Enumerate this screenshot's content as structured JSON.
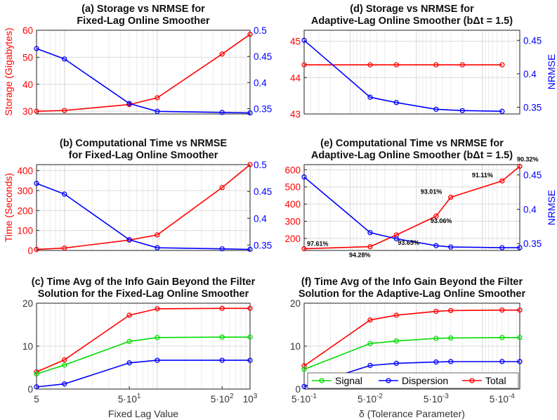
{
  "chart_data": [
    {
      "id": "a",
      "type": "line",
      "title": [
        "(a) Storage vs NRMSE for",
        "Fixed-Lag Online Smoother"
      ],
      "xscale": "log",
      "xlim": [
        5,
        1000
      ],
      "ylabel_left": "Storage (Gigabytes)",
      "ylim_left": [
        29,
        60
      ],
      "yticks_left": [
        30,
        40,
        50,
        60
      ],
      "ylabel_right": "",
      "ylim_right": [
        0.34,
        0.5
      ],
      "yticks_right": [
        0.35,
        0.4,
        0.45,
        0.5
      ],
      "series": [
        {
          "name": "Storage",
          "axis": "left",
          "color": "#ff0000",
          "x": [
            5,
            10,
            50,
            100,
            500,
            1000
          ],
          "values": [
            30,
            30.3,
            32.5,
            35,
            51.2,
            58.5
          ]
        },
        {
          "name": "NRMSE",
          "axis": "right",
          "color": "#0000ff",
          "x": [
            5,
            10,
            50,
            100,
            500,
            1000
          ],
          "values": [
            0.465,
            0.445,
            0.36,
            0.345,
            0.343,
            0.342
          ]
        }
      ]
    },
    {
      "id": "b",
      "type": "line",
      "title": [
        "(b) Computational Time vs NRMSE",
        "for Fixed-Lag Online Smoother"
      ],
      "xscale": "log",
      "xlim": [
        5,
        1000
      ],
      "ylabel_left": "Time (Seconds)",
      "ylim_left": [
        0,
        430
      ],
      "yticks_left": [
        0,
        100,
        200,
        300,
        400
      ],
      "ylabel_right": "",
      "ylim_right": [
        0.34,
        0.5
      ],
      "yticks_right": [
        0.35,
        0.4,
        0.45,
        0.5
      ],
      "series": [
        {
          "name": "Time",
          "axis": "left",
          "color": "#ff0000",
          "x": [
            5,
            10,
            50,
            100,
            500,
            1000
          ],
          "values": [
            5,
            12,
            52,
            78,
            315,
            430
          ]
        },
        {
          "name": "NRMSE",
          "axis": "right",
          "color": "#0000ff",
          "x": [
            5,
            10,
            50,
            100,
            500,
            1000
          ],
          "values": [
            0.465,
            0.445,
            0.36,
            0.345,
            0.343,
            0.342
          ]
        }
      ]
    },
    {
      "id": "c",
      "type": "line",
      "title": [
        "(c) Time Avg of the Info Gain Beyond the Filter",
        "Solution for the Fixed-Lag Online Smoother"
      ],
      "xscale": "log",
      "xlim": [
        5,
        1000
      ],
      "xticks": [
        5,
        50,
        500,
        1000
      ],
      "xticklabels": [
        "5",
        "5·10^1",
        "5·10^2",
        "10^3"
      ],
      "xlabel": "Fixed Lag Value",
      "ylim_left": [
        0,
        20
      ],
      "yticks_left": [
        0,
        10,
        20
      ],
      "series": [
        {
          "name": "Total",
          "color": "#ff0000",
          "x": [
            5,
            10,
            50,
            100,
            500,
            1000
          ],
          "values": [
            4,
            6.8,
            17.2,
            18.7,
            18.8,
            18.8
          ]
        },
        {
          "name": "Signal",
          "color": "#00dd00",
          "x": [
            5,
            10,
            50,
            100,
            500,
            1000
          ],
          "values": [
            3.5,
            5.6,
            11.1,
            12,
            12.1,
            12.1
          ]
        },
        {
          "name": "Dispersion",
          "color": "#0000ff",
          "x": [
            5,
            10,
            50,
            100,
            500,
            1000
          ],
          "values": [
            0.5,
            1.2,
            6.1,
            6.7,
            6.7,
            6.7
          ]
        }
      ]
    },
    {
      "id": "d",
      "type": "line",
      "title": [
        "(d) Storage vs NRMSE for",
        "Adaptive-Lag Online Smoother (bΔt = 1.5)"
      ],
      "xscale": "log-reversed",
      "xlim": [
        0.5,
        0.00027
      ],
      "ylabel_left": "",
      "ylim_left": [
        43,
        45.3
      ],
      "yticks_left": [
        43,
        44,
        45
      ],
      "ylabel_right": "NRMSE",
      "ylim_right": [
        0.34,
        0.465
      ],
      "yticks_right": [
        0.35,
        0.4,
        0.45
      ],
      "series": [
        {
          "name": "Storage",
          "axis": "left",
          "color": "#ff0000",
          "x": [
            0.5,
            0.05,
            0.02,
            0.005,
            0.002,
            0.0005
          ],
          "values": [
            44.35,
            44.35,
            44.35,
            44.35,
            44.35,
            44.35
          ]
        },
        {
          "name": "NRMSE",
          "axis": "right",
          "color": "#0000ff",
          "x": [
            0.5,
            0.05,
            0.02,
            0.005,
            0.002,
            0.0005
          ],
          "values": [
            0.45,
            0.365,
            0.357,
            0.347,
            0.345,
            0.344
          ]
        }
      ]
    },
    {
      "id": "e",
      "type": "line",
      "title": [
        "(e) Computational Time vs NRMSE for",
        "Adaptive-Lag Online Smoother (bΔt = 1.5)"
      ],
      "xscale": "log-reversed",
      "xlim": [
        0.5,
        0.00027
      ],
      "ylabel_left": "",
      "ylim_left": [
        130,
        630
      ],
      "yticks_left": [
        200,
        300,
        400,
        500,
        600
      ],
      "ylabel_right": "NRMSE",
      "ylim_right": [
        0.34,
        0.465
      ],
      "yticks_right": [
        0.35,
        0.4,
        0.45
      ],
      "series": [
        {
          "name": "Time",
          "axis": "left",
          "color": "#ff0000",
          "x": [
            0.5,
            0.05,
            0.02,
            0.005,
            0.003,
            0.0005,
            0.00027
          ],
          "values": [
            140,
            152,
            220,
            330,
            440,
            535,
            620
          ]
        },
        {
          "name": "NRMSE",
          "axis": "right",
          "color": "#0000ff",
          "x": [
            0.5,
            0.05,
            0.02,
            0.005,
            0.003,
            0.0005,
            0.00027
          ],
          "values": [
            0.447,
            0.366,
            0.357,
            0.347,
            0.345,
            0.344,
            0.344
          ]
        }
      ],
      "annotations": [
        "97.61%",
        "94.28%",
        "93.65%",
        "93.06%",
        "93.01%",
        "91.11%",
        "90.32%"
      ]
    },
    {
      "id": "f",
      "type": "line",
      "title": [
        "(f) Time Avg of the Info Gain Beyond the Filter",
        "Solution for the Adaptive-Lag Online Smoother"
      ],
      "xscale": "log-reversed",
      "xlim": [
        0.5,
        0.00027
      ],
      "xticks": [
        0.5,
        0.05,
        0.005,
        0.0005
      ],
      "xticklabels": [
        "5·10^-1",
        "5·10^-2",
        "5·10^-3",
        "5·10^-4"
      ],
      "xlabel": "δ (Tolerance Parameter)",
      "ylim_left": [
        0,
        20
      ],
      "yticks_left": [
        0,
        10,
        20
      ],
      "legend": {
        "placement": "bottom-right",
        "entries": [
          "Signal",
          "Dispersion",
          "Total"
        ]
      },
      "series": [
        {
          "name": "Total",
          "color": "#ff0000",
          "x": [
            0.5,
            0.05,
            0.02,
            0.005,
            0.003,
            0.0005,
            0.00027
          ],
          "values": [
            5.4,
            16.1,
            17.2,
            18.1,
            18.3,
            18.4,
            18.4
          ]
        },
        {
          "name": "Signal",
          "color": "#00dd00",
          "x": [
            0.5,
            0.05,
            0.02,
            0.005,
            0.003,
            0.0005,
            0.00027
          ],
          "values": [
            4.6,
            10.6,
            11.2,
            11.8,
            11.9,
            12,
            12
          ]
        },
        {
          "name": "Dispersion",
          "color": "#0000ff",
          "x": [
            0.5,
            0.05,
            0.02,
            0.005,
            0.003,
            0.0005,
            0.00027
          ],
          "values": [
            0.6,
            5.5,
            6,
            6.3,
            6.4,
            6.4,
            6.4
          ]
        }
      ]
    }
  ]
}
